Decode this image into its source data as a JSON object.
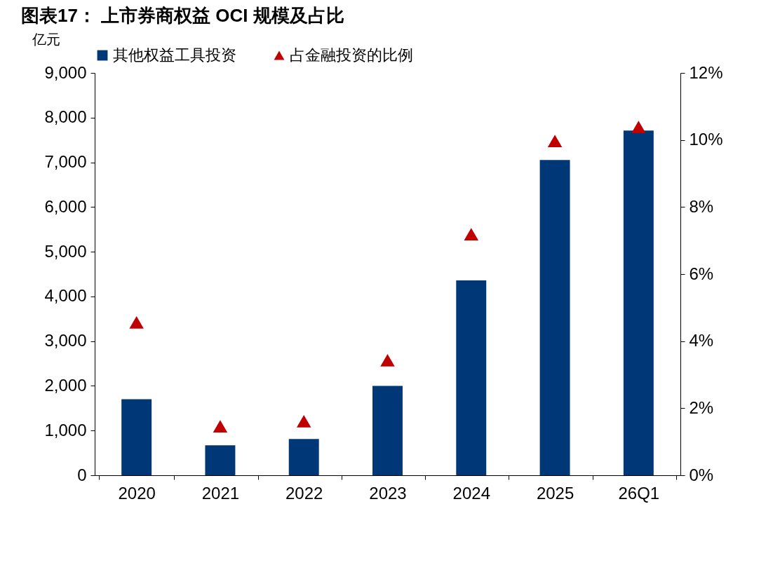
{
  "chart_data": {
    "type": "bar",
    "title": "图表17：  上市券商权益 OCI 规模及占比",
    "ylabel": "亿元",
    "categories": [
      "2020",
      "2021",
      "2022",
      "2023",
      "2024",
      "2025",
      "26Q1"
    ],
    "series": [
      {
        "name": "其他权益工具投资",
        "color": "#003776",
        "values": [
          1700,
          670,
          810,
          2000,
          4360,
          7050,
          7710
        ]
      },
      {
        "name": "占金融投资的比例",
        "type": "scatter",
        "axis": "y2",
        "marker": "triangle",
        "color": "#c00000",
        "values": [
          4.56,
          1.46,
          1.61,
          3.43,
          7.19,
          9.97,
          10.39
        ]
      }
    ],
    "ylim": [
      0,
      9000
    ],
    "yticks": [
      0,
      {
        "value": 1000,
        "label": "1,000"
      },
      {
        "value": 2000,
        "label": "2,000"
      },
      {
        "value": 3000,
        "label": "3,000"
      },
      {
        "value": 4000,
        "label": "4,000"
      },
      {
        "value": 5000,
        "label": "5,000"
      },
      {
        "value": 6000,
        "label": "6,000"
      },
      {
        "value": 7000,
        "label": "7,000"
      },
      {
        "value": 8000,
        "label": "8,000"
      },
      {
        "value": 9000,
        "label": "9,000"
      }
    ],
    "y2lim": [
      0,
      12
    ],
    "y2ticks": [
      {
        "value": 0,
        "label": "0%"
      },
      {
        "value": 2,
        "label": "2%"
      },
      {
        "value": 4,
        "label": "4%"
      },
      {
        "value": 6,
        "label": "6%"
      },
      {
        "value": 8,
        "label": "8%"
      },
      {
        "value": 10,
        "label": "10%"
      },
      {
        "value": 12,
        "label": "12%"
      }
    ],
    "legend": "top",
    "grid": false
  }
}
